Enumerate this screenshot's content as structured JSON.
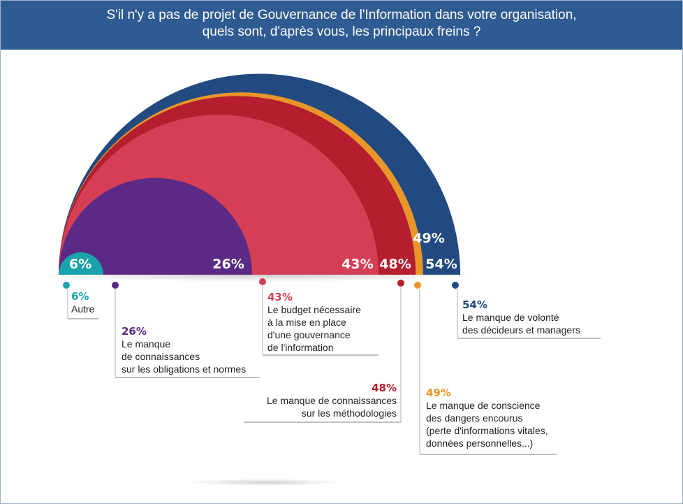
{
  "title": {
    "line1": "S'il n'y a pas de projet de Gouvernance de l'Information dans votre organisation,",
    "line2": "quels sont, d'après vous, les principaux freins ?"
  },
  "chart_data": {
    "type": "semicircle-proportional",
    "title": "S'il n'y a pas de projet de Gouvernance de l'Information dans votre organisation, quels sont, d'après vous, les principaux freins ?",
    "unit": "%",
    "series": [
      {
        "name": "Le manque de volonté des décideurs et managers",
        "value": 54,
        "label": "54%",
        "color": "#234a80",
        "text_lines": [
          "Le manque de volonté",
          "des décideurs et managers"
        ]
      },
      {
        "name": "Le manque de conscience des dangers encourus (perte d'informations vitales, données personnelles...)",
        "value": 49,
        "label": "49%",
        "color": "#e8962a",
        "text_lines": [
          "Le manque de conscience",
          "des dangers encourus",
          "(perte d'informations vitales,",
          "données personnelles...)"
        ]
      },
      {
        "name": "Le manque de connaissances sur les méthodologies",
        "value": 48,
        "label": "48%",
        "color": "#b41e2e",
        "text_lines": [
          "Le manque de connaissances",
          "sur les méthodologies"
        ]
      },
      {
        "name": "Le budget nécessaire à la mise en place d'une gouvernance de l'information",
        "value": 43,
        "label": "43%",
        "color": "#d43f55",
        "text_lines": [
          "Le budget nécessaire",
          "à la mise en place",
          "d'une gouvernance",
          "de l'information"
        ]
      },
      {
        "name": "Le manque de connaissances sur les obligations et normes",
        "value": 26,
        "label": "26%",
        "color": "#5b2a86",
        "text_lines": [
          "Le manque",
          "de connaissances",
          "sur les obligations et normes"
        ]
      },
      {
        "name": "Autre",
        "value": 6,
        "label": "6%",
        "color": "#1aa3aa",
        "text_lines": [
          "Autre"
        ]
      }
    ]
  }
}
